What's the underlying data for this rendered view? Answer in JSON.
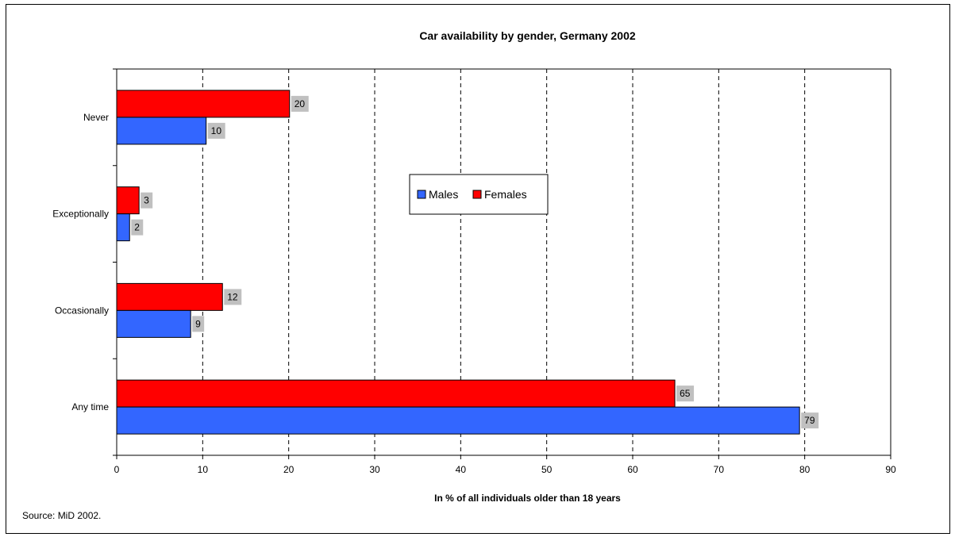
{
  "chart_data": {
    "type": "bar",
    "orientation": "horizontal",
    "title": "Car availability by gender, Germany 2002",
    "xlabel": "In % of all individuals older than 18 years",
    "ylabel": "",
    "source": "Source: MiD 2002.",
    "categories": [
      "Never",
      "Exceptionally",
      "Occasionally",
      "Any time"
    ],
    "series": [
      {
        "name": "Females",
        "color": "#ff0000",
        "values": [
          20.1,
          2.6,
          12.3,
          64.9
        ],
        "labels": [
          "20",
          "3",
          "12",
          "65"
        ]
      },
      {
        "name": "Males",
        "color": "#3366ff",
        "values": [
          10.4,
          1.5,
          8.6,
          79.4
        ],
        "labels": [
          "10",
          "2",
          "9",
          "79"
        ]
      }
    ],
    "xlim": [
      0,
      90
    ],
    "xticks": [
      "0",
      "10",
      "20",
      "30",
      "40",
      "50",
      "60",
      "70",
      "80",
      "90"
    ],
    "grid": "vertical dashed",
    "legend": {
      "position": "center",
      "items": [
        "Males",
        "Females"
      ]
    },
    "data_label_background": "#c0c0c0"
  }
}
